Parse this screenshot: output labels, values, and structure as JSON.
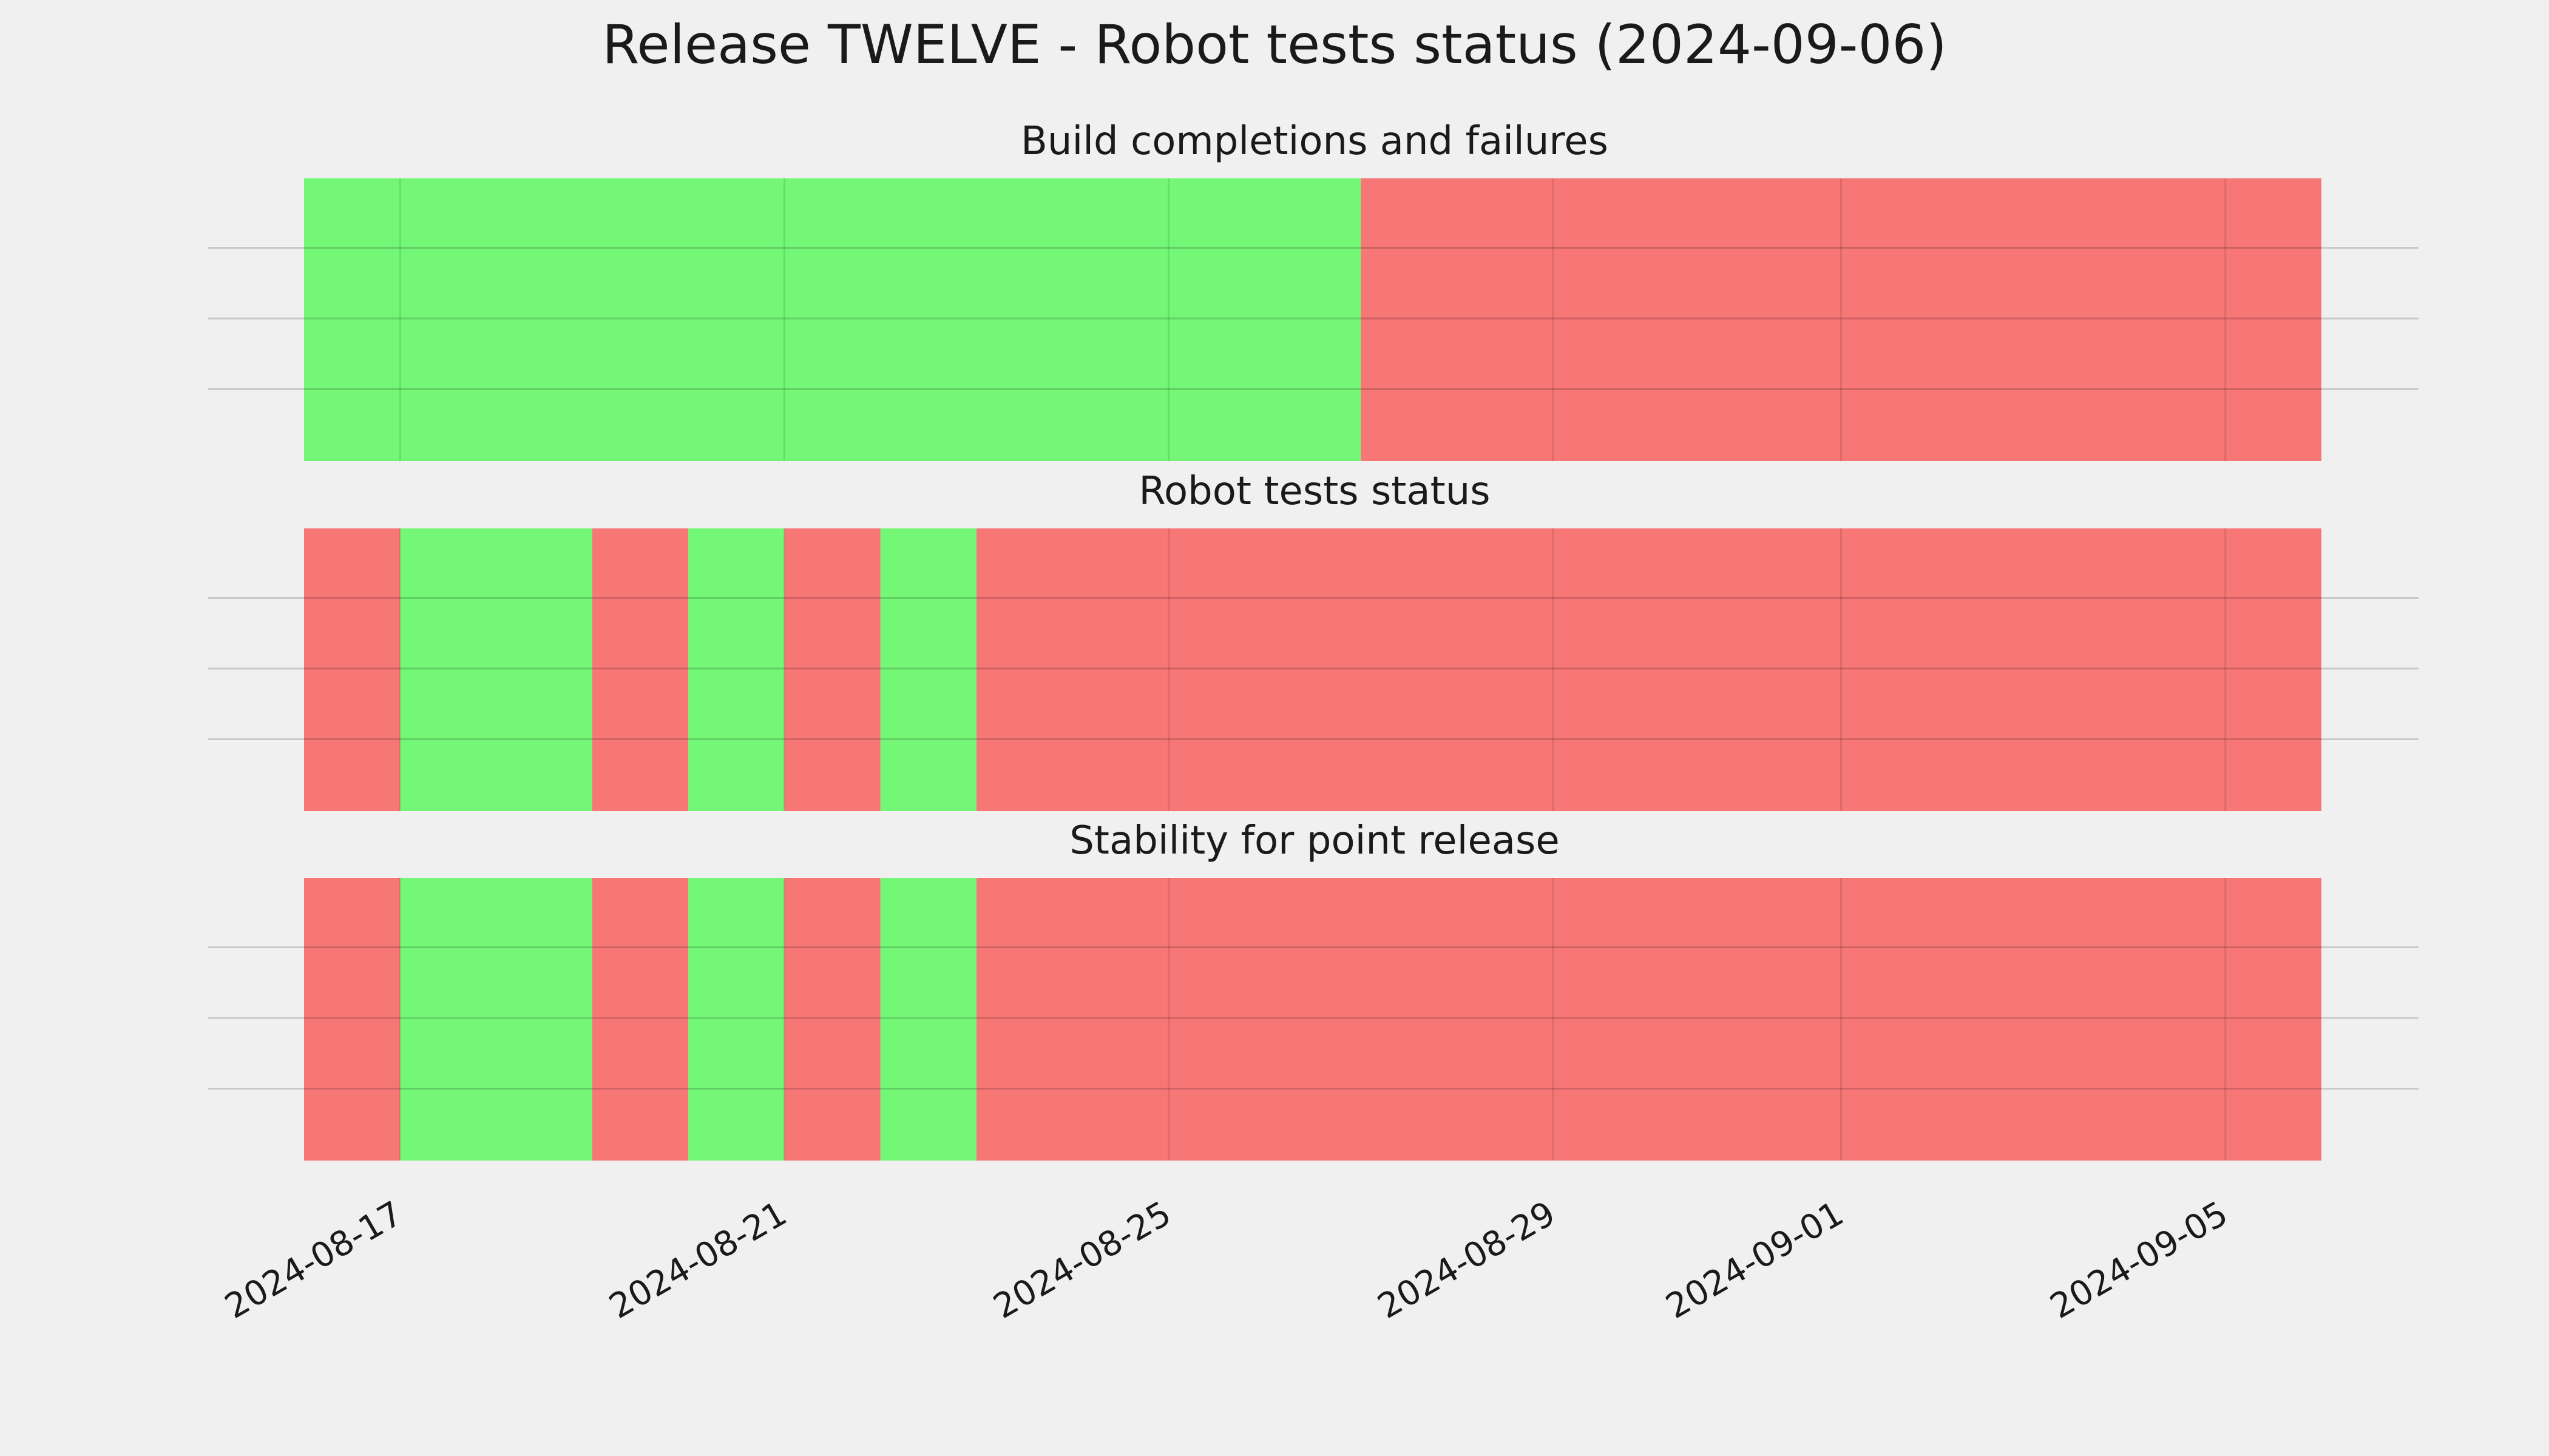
{
  "chart_data": {
    "type": "timeline",
    "title": "Release TWELVE - Robot tests status (2024-09-06)",
    "x_axis": {
      "range": [
        "2024-08-16",
        "2024-09-06"
      ],
      "ticks": [
        "2024-08-17",
        "2024-08-21",
        "2024-08-25",
        "2024-08-29",
        "2024-09-01",
        "2024-09-05"
      ]
    },
    "colors": {
      "pass": "#74f777",
      "fail": "#f77676"
    },
    "status_legend": {
      "pass": "green",
      "fail": "red"
    },
    "panels": [
      {
        "title": "Build completions and failures",
        "segments": [
          {
            "start": "2024-08-16",
            "end": "2024-08-27",
            "status": "pass"
          },
          {
            "start": "2024-08-27",
            "end": "2024-09-06",
            "status": "fail"
          }
        ]
      },
      {
        "title": "Robot tests status",
        "segments": [
          {
            "start": "2024-08-16",
            "end": "2024-08-17",
            "status": "fail"
          },
          {
            "start": "2024-08-17",
            "end": "2024-08-19",
            "status": "pass"
          },
          {
            "start": "2024-08-19",
            "end": "2024-08-20",
            "status": "fail"
          },
          {
            "start": "2024-08-20",
            "end": "2024-08-21",
            "status": "pass"
          },
          {
            "start": "2024-08-21",
            "end": "2024-08-22",
            "status": "fail"
          },
          {
            "start": "2024-08-22",
            "end": "2024-08-23",
            "status": "pass"
          },
          {
            "start": "2024-08-23",
            "end": "2024-09-06",
            "status": "fail"
          }
        ]
      },
      {
        "title": "Stability for point release",
        "segments": [
          {
            "start": "2024-08-16",
            "end": "2024-08-17",
            "status": "fail"
          },
          {
            "start": "2024-08-17",
            "end": "2024-08-19",
            "status": "pass"
          },
          {
            "start": "2024-08-19",
            "end": "2024-08-20",
            "status": "fail"
          },
          {
            "start": "2024-08-20",
            "end": "2024-08-21",
            "status": "pass"
          },
          {
            "start": "2024-08-21",
            "end": "2024-08-22",
            "status": "fail"
          },
          {
            "start": "2024-08-22",
            "end": "2024-08-23",
            "status": "pass"
          },
          {
            "start": "2024-08-23",
            "end": "2024-09-06",
            "status": "fail"
          }
        ]
      }
    ],
    "grid": true
  }
}
